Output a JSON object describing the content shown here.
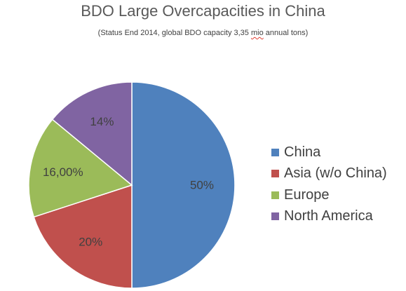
{
  "chart_data": {
    "type": "pie",
    "title": "BDO Large Overcapacities in China",
    "subtitle": {
      "before": "(Status End 2014, global BDO capacity 3,35 ",
      "marked": "mio",
      "after": " annual tons)"
    },
    "slices": [
      {
        "name": "China",
        "value": 50,
        "label": "50%",
        "color": "#4f81bd"
      },
      {
        "name": "Asia (w/o China)",
        "value": 20,
        "label": "20%",
        "color": "#c0504d"
      },
      {
        "name": "Europe",
        "value": 16,
        "label": "16,00%",
        "color": "#9bbb59"
      },
      {
        "name": "North America",
        "value": 14,
        "label": "14%",
        "color": "#8064a2"
      }
    ],
    "start_angle_deg": 0,
    "direction": "clockwise",
    "legend_position": "right"
  }
}
